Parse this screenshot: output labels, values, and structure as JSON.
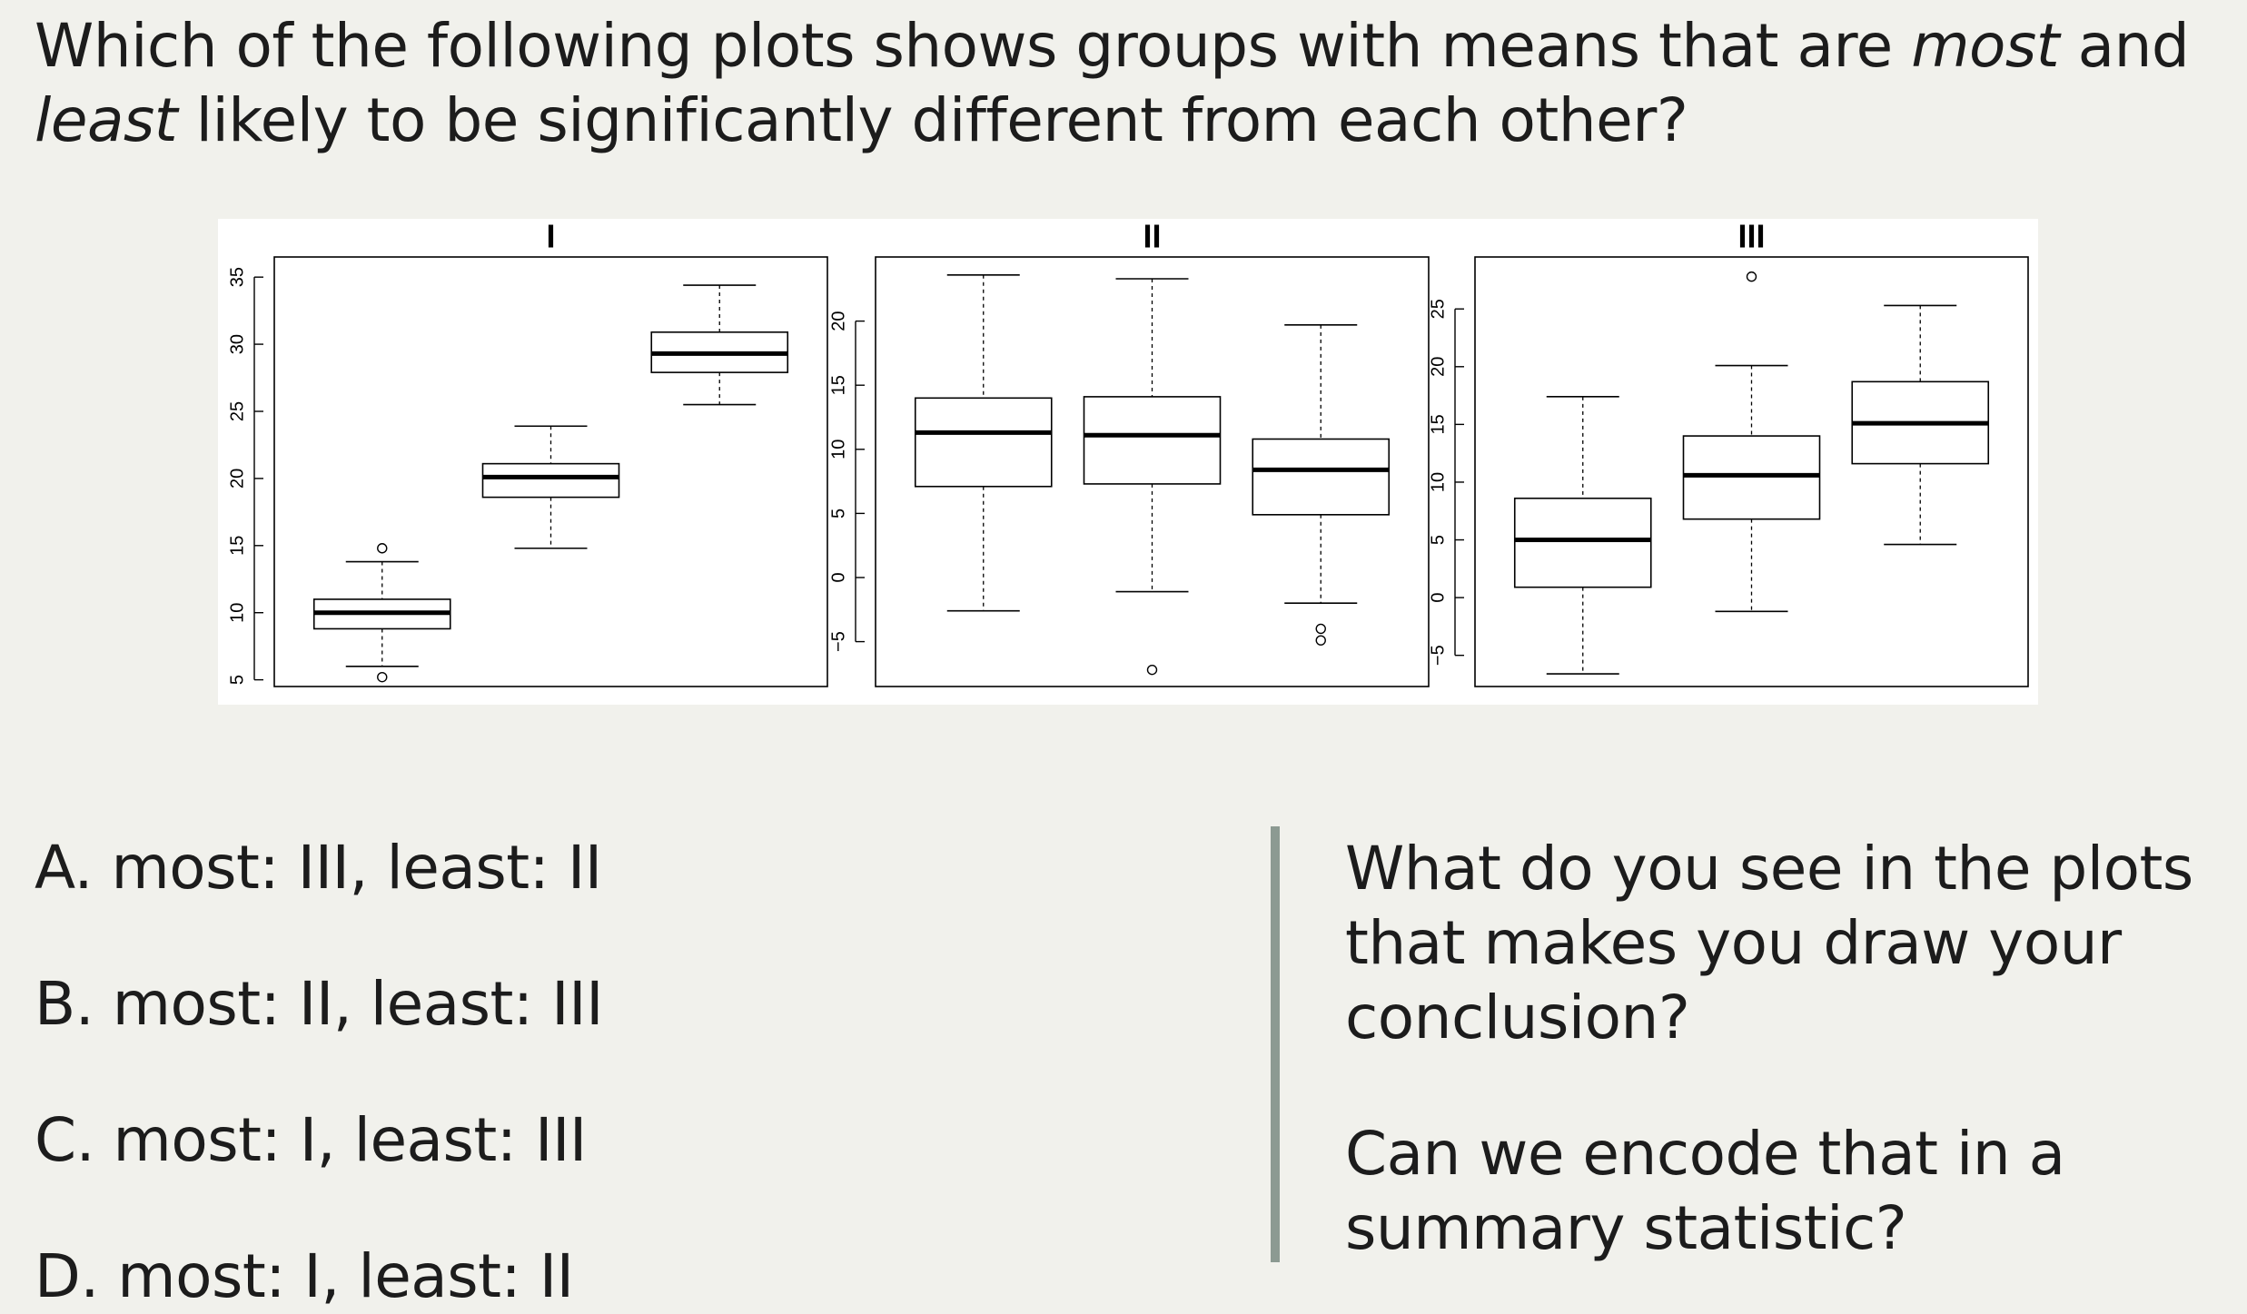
{
  "question": {
    "part1": "Which of the following plots shows groups with means that are ",
    "most": "most",
    "part2": " and ",
    "least": "least",
    "part3": " likely to be significantly different from each other?"
  },
  "options": [
    "A. most: III, least: II",
    "B. most: II, least: III",
    "C. most: I, least: III",
    "D. most: I, least: II"
  ],
  "prompts": [
    "What do you see in the plots that makes you draw your conclusion?",
    "Can we encode that in a summary statistic?"
  ],
  "colors": {
    "background": "#f1f1ec",
    "text": "#1c1c1c",
    "divider": "#8c9a92",
    "plot_background": "#ffffff",
    "plot_ink": "#000000"
  },
  "chart_data": [
    {
      "type": "boxplot",
      "title": "I",
      "xlabel": "",
      "ylabel": "",
      "ylim": [
        4.5,
        36.5
      ],
      "yticks": [
        5,
        10,
        15,
        20,
        25,
        30,
        35
      ],
      "boxes": [
        {
          "whisker_low": 6,
          "q1": 8.8,
          "median": 10,
          "q3": 11,
          "whisker_high": 13.8,
          "outliers": [
            5.2,
            14.8
          ]
        },
        {
          "whisker_low": 14.8,
          "q1": 18.6,
          "median": 20.1,
          "q3": 21.1,
          "whisker_high": 23.9,
          "outliers": []
        },
        {
          "whisker_low": 25.5,
          "q1": 27.9,
          "median": 29.3,
          "q3": 30.9,
          "whisker_high": 34.4,
          "outliers": []
        }
      ]
    },
    {
      "type": "boxplot",
      "title": "II",
      "xlabel": "",
      "ylabel": "",
      "ylim": [
        -8.5,
        25
      ],
      "yticks": [
        -5,
        0,
        5,
        10,
        15,
        20
      ],
      "boxes": [
        {
          "whisker_low": -2.6,
          "q1": 7.1,
          "median": 11.3,
          "q3": 14.0,
          "whisker_high": 23.6,
          "outliers": []
        },
        {
          "whisker_low": -1.1,
          "q1": 7.3,
          "median": 11.1,
          "q3": 14.1,
          "whisker_high": 23.3,
          "outliers": [
            -7.2
          ]
        },
        {
          "whisker_low": -2.0,
          "q1": 4.9,
          "median": 8.4,
          "q3": 10.8,
          "whisker_high": 19.7,
          "outliers": [
            -4.0,
            -4.9
          ]
        }
      ]
    },
    {
      "type": "boxplot",
      "title": "III",
      "xlabel": "",
      "ylabel": "",
      "ylim": [
        -7.7,
        29.5
      ],
      "yticks": [
        -5,
        0,
        5,
        10,
        15,
        20,
        25
      ],
      "boxes": [
        {
          "whisker_low": -6.6,
          "q1": 0.9,
          "median": 5.0,
          "q3": 8.6,
          "whisker_high": 17.4,
          "outliers": []
        },
        {
          "whisker_low": -1.2,
          "q1": 6.8,
          "median": 10.6,
          "q3": 14.0,
          "whisker_high": 20.1,
          "outliers": [
            27.8
          ]
        },
        {
          "whisker_low": 4.6,
          "q1": 11.6,
          "median": 15.1,
          "q3": 18.7,
          "whisker_high": 25.3,
          "outliers": []
        }
      ]
    }
  ]
}
